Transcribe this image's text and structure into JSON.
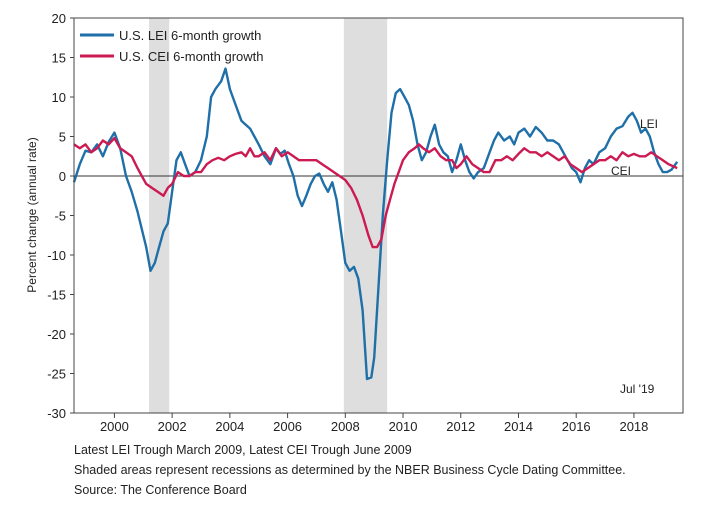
{
  "chart_data": {
    "type": "line",
    "title": "",
    "ylabel": "Percent change (annual rate)",
    "xlabel": "",
    "ylim": [
      -30,
      20
    ],
    "yticks": [
      -30,
      -25,
      -20,
      -15,
      -10,
      -5,
      0,
      5,
      10,
      15,
      20
    ],
    "xlim": [
      1998.6,
      2019.7
    ],
    "xticks": [
      2000,
      2002,
      2004,
      2006,
      2008,
      2010,
      2012,
      2014,
      2016,
      2018
    ],
    "zero_line": true,
    "grid": false,
    "legend": "top-left",
    "recessions": [
      [
        2001.2,
        2001.9
      ],
      [
        2007.95,
        2009.45
      ]
    ],
    "annotation": "Jul '19",
    "series": [
      {
        "name": "U.S. LEI 6-month growth",
        "label": "LEI",
        "color": "#1f6fa8",
        "points": [
          [
            1998.6,
            -0.8
          ],
          [
            1998.8,
            1.5
          ],
          [
            1999.0,
            3.2
          ],
          [
            1999.2,
            3.0
          ],
          [
            1999.4,
            4.0
          ],
          [
            1999.6,
            2.5
          ],
          [
            1999.8,
            4.3
          ],
          [
            2000.0,
            5.5
          ],
          [
            2000.2,
            3.5
          ],
          [
            2000.4,
            0.0
          ],
          [
            2000.6,
            -2.0
          ],
          [
            2000.8,
            -4.5
          ],
          [
            2000.9,
            -6.0
          ],
          [
            2001.1,
            -9.0
          ],
          [
            2001.25,
            -12.0
          ],
          [
            2001.4,
            -11.0
          ],
          [
            2001.55,
            -9.0
          ],
          [
            2001.7,
            -7.0
          ],
          [
            2001.85,
            -6.0
          ],
          [
            2002.0,
            -2.0
          ],
          [
            2002.15,
            2.0
          ],
          [
            2002.3,
            3.0
          ],
          [
            2002.45,
            1.5
          ],
          [
            2002.6,
            0.0
          ],
          [
            2002.8,
            0.5
          ],
          [
            2003.0,
            2.0
          ],
          [
            2003.2,
            5.0
          ],
          [
            2003.35,
            10.0
          ],
          [
            2003.5,
            11.0
          ],
          [
            2003.7,
            12.0
          ],
          [
            2003.85,
            13.6
          ],
          [
            2004.0,
            11.0
          ],
          [
            2004.2,
            9.0
          ],
          [
            2004.4,
            7.0
          ],
          [
            2004.55,
            6.5
          ],
          [
            2004.7,
            6.0
          ],
          [
            2004.85,
            5.0
          ],
          [
            2005.0,
            4.0
          ],
          [
            2005.2,
            2.5
          ],
          [
            2005.4,
            1.5
          ],
          [
            2005.6,
            3.5
          ],
          [
            2005.75,
            2.8
          ],
          [
            2005.9,
            3.2
          ],
          [
            2006.05,
            1.5
          ],
          [
            2006.2,
            0.0
          ],
          [
            2006.35,
            -2.5
          ],
          [
            2006.5,
            -3.8
          ],
          [
            2006.65,
            -2.5
          ],
          [
            2006.8,
            -1.0
          ],
          [
            2006.95,
            0.0
          ],
          [
            2007.1,
            0.3
          ],
          [
            2007.25,
            -1.0
          ],
          [
            2007.4,
            -2.0
          ],
          [
            2007.55,
            -0.8
          ],
          [
            2007.7,
            -3.0
          ],
          [
            2007.85,
            -7.0
          ],
          [
            2008.0,
            -11.0
          ],
          [
            2008.15,
            -12.0
          ],
          [
            2008.3,
            -11.5
          ],
          [
            2008.45,
            -13.0
          ],
          [
            2008.6,
            -17.0
          ],
          [
            2008.75,
            -25.7
          ],
          [
            2008.9,
            -25.5
          ],
          [
            2009.0,
            -23.0
          ],
          [
            2009.15,
            -14.0
          ],
          [
            2009.3,
            -5.0
          ],
          [
            2009.45,
            2.0
          ],
          [
            2009.6,
            8.0
          ],
          [
            2009.75,
            10.5
          ],
          [
            2009.9,
            11.0
          ],
          [
            2010.05,
            10.0
          ],
          [
            2010.2,
            9.0
          ],
          [
            2010.35,
            7.0
          ],
          [
            2010.5,
            4.0
          ],
          [
            2010.65,
            2.0
          ],
          [
            2010.8,
            3.0
          ],
          [
            2010.95,
            5.0
          ],
          [
            2011.1,
            6.5
          ],
          [
            2011.25,
            4.0
          ],
          [
            2011.4,
            3.0
          ],
          [
            2011.55,
            2.5
          ],
          [
            2011.7,
            0.5
          ],
          [
            2011.85,
            2.0
          ],
          [
            2012.0,
            4.0
          ],
          [
            2012.15,
            2.0
          ],
          [
            2012.3,
            0.5
          ],
          [
            2012.45,
            -0.3
          ],
          [
            2012.6,
            0.5
          ],
          [
            2012.8,
            1.0
          ],
          [
            2013.0,
            3.0
          ],
          [
            2013.15,
            4.5
          ],
          [
            2013.3,
            5.5
          ],
          [
            2013.5,
            4.5
          ],
          [
            2013.7,
            5.0
          ],
          [
            2013.85,
            4.0
          ],
          [
            2014.0,
            5.5
          ],
          [
            2014.2,
            6.0
          ],
          [
            2014.4,
            5.0
          ],
          [
            2014.6,
            6.2
          ],
          [
            2014.8,
            5.5
          ],
          [
            2015.0,
            4.5
          ],
          [
            2015.2,
            4.5
          ],
          [
            2015.4,
            4.0
          ],
          [
            2015.55,
            3.0
          ],
          [
            2015.7,
            2.0
          ],
          [
            2015.85,
            1.0
          ],
          [
            2016.0,
            0.5
          ],
          [
            2016.15,
            -0.8
          ],
          [
            2016.3,
            1.0
          ],
          [
            2016.45,
            2.0
          ],
          [
            2016.6,
            1.5
          ],
          [
            2016.8,
            3.0
          ],
          [
            2017.0,
            3.5
          ],
          [
            2017.2,
            5.0
          ],
          [
            2017.4,
            6.0
          ],
          [
            2017.6,
            6.3
          ],
          [
            2017.8,
            7.5
          ],
          [
            2017.95,
            8.0
          ],
          [
            2018.1,
            7.0
          ],
          [
            2018.25,
            5.5
          ],
          [
            2018.4,
            6.0
          ],
          [
            2018.55,
            5.0
          ],
          [
            2018.7,
            3.0
          ],
          [
            2018.85,
            1.5
          ],
          [
            2019.0,
            0.5
          ],
          [
            2019.15,
            0.5
          ],
          [
            2019.3,
            0.8
          ],
          [
            2019.5,
            1.8
          ]
        ]
      },
      {
        "name": "U.S. CEI 6-month growth",
        "label": "CEI",
        "color": "#cc1a52",
        "points": [
          [
            1998.6,
            4.0
          ],
          [
            1998.8,
            3.5
          ],
          [
            1999.0,
            4.0
          ],
          [
            1999.2,
            3.0
          ],
          [
            1999.4,
            3.5
          ],
          [
            1999.6,
            4.5
          ],
          [
            1999.8,
            4.0
          ],
          [
            2000.0,
            4.8
          ],
          [
            2000.2,
            3.5
          ],
          [
            2000.4,
            3.0
          ],
          [
            2000.6,
            2.5
          ],
          [
            2000.8,
            1.0
          ],
          [
            2000.95,
            0.0
          ],
          [
            2001.1,
            -1.0
          ],
          [
            2001.3,
            -1.5
          ],
          [
            2001.5,
            -2.0
          ],
          [
            2001.7,
            -2.5
          ],
          [
            2001.85,
            -1.5
          ],
          [
            2002.0,
            -1.0
          ],
          [
            2002.2,
            0.5
          ],
          [
            2002.4,
            0.0
          ],
          [
            2002.6,
            0.0
          ],
          [
            2002.8,
            0.5
          ],
          [
            2003.0,
            0.5
          ],
          [
            2003.2,
            1.5
          ],
          [
            2003.4,
            2.0
          ],
          [
            2003.6,
            2.3
          ],
          [
            2003.8,
            2.0
          ],
          [
            2004.0,
            2.5
          ],
          [
            2004.2,
            2.8
          ],
          [
            2004.4,
            3.0
          ],
          [
            2004.55,
            2.5
          ],
          [
            2004.7,
            3.5
          ],
          [
            2004.85,
            2.5
          ],
          [
            2005.0,
            2.5
          ],
          [
            2005.2,
            3.0
          ],
          [
            2005.4,
            2.0
          ],
          [
            2005.6,
            3.5
          ],
          [
            2005.8,
            2.5
          ],
          [
            2006.0,
            3.0
          ],
          [
            2006.2,
            2.5
          ],
          [
            2006.4,
            2.0
          ],
          [
            2006.6,
            2.0
          ],
          [
            2006.8,
            2.0
          ],
          [
            2007.0,
            2.0
          ],
          [
            2007.2,
            1.5
          ],
          [
            2007.4,
            1.0
          ],
          [
            2007.6,
            0.5
          ],
          [
            2007.8,
            0.0
          ],
          [
            2008.0,
            -0.5
          ],
          [
            2008.2,
            -1.5
          ],
          [
            2008.4,
            -3.0
          ],
          [
            2008.6,
            -5.0
          ],
          [
            2008.8,
            -7.5
          ],
          [
            2008.95,
            -9.0
          ],
          [
            2009.1,
            -9.0
          ],
          [
            2009.25,
            -8.0
          ],
          [
            2009.4,
            -5.0
          ],
          [
            2009.55,
            -3.0
          ],
          [
            2009.7,
            -1.0
          ],
          [
            2009.85,
            0.5
          ],
          [
            2010.0,
            2.0
          ],
          [
            2010.2,
            3.0
          ],
          [
            2010.4,
            3.5
          ],
          [
            2010.55,
            4.0
          ],
          [
            2010.7,
            3.5
          ],
          [
            2010.9,
            3.0
          ],
          [
            2011.1,
            3.5
          ],
          [
            2011.3,
            2.5
          ],
          [
            2011.5,
            2.0
          ],
          [
            2011.7,
            2.0
          ],
          [
            2011.85,
            1.0
          ],
          [
            2012.0,
            1.5
          ],
          [
            2012.2,
            2.5
          ],
          [
            2012.4,
            1.5
          ],
          [
            2012.6,
            1.0
          ],
          [
            2012.8,
            0.5
          ],
          [
            2013.0,
            0.5
          ],
          [
            2013.2,
            2.0
          ],
          [
            2013.4,
            2.0
          ],
          [
            2013.6,
            2.5
          ],
          [
            2013.8,
            2.0
          ],
          [
            2014.0,
            2.8
          ],
          [
            2014.2,
            3.5
          ],
          [
            2014.4,
            3.0
          ],
          [
            2014.6,
            3.0
          ],
          [
            2014.8,
            2.5
          ],
          [
            2015.0,
            3.0
          ],
          [
            2015.2,
            2.5
          ],
          [
            2015.4,
            2.0
          ],
          [
            2015.6,
            2.5
          ],
          [
            2015.8,
            1.5
          ],
          [
            2016.0,
            1.0
          ],
          [
            2016.2,
            0.5
          ],
          [
            2016.4,
            1.0
          ],
          [
            2016.6,
            1.5
          ],
          [
            2016.8,
            2.0
          ],
          [
            2017.0,
            2.0
          ],
          [
            2017.2,
            2.5
          ],
          [
            2017.4,
            2.0
          ],
          [
            2017.6,
            3.0
          ],
          [
            2017.8,
            2.5
          ],
          [
            2018.0,
            2.8
          ],
          [
            2018.2,
            2.5
          ],
          [
            2018.4,
            2.5
          ],
          [
            2018.6,
            3.0
          ],
          [
            2018.8,
            2.5
          ],
          [
            2019.0,
            2.0
          ],
          [
            2019.2,
            1.5
          ],
          [
            2019.5,
            1.0
          ]
        ]
      }
    ]
  },
  "notes": [
    "Latest LEI Trough March 2009, Latest CEI Trough June 2009",
    "Shaded areas represent recessions as determined by the NBER Business Cycle Dating Committee.",
    "Source: The Conference Board"
  ]
}
